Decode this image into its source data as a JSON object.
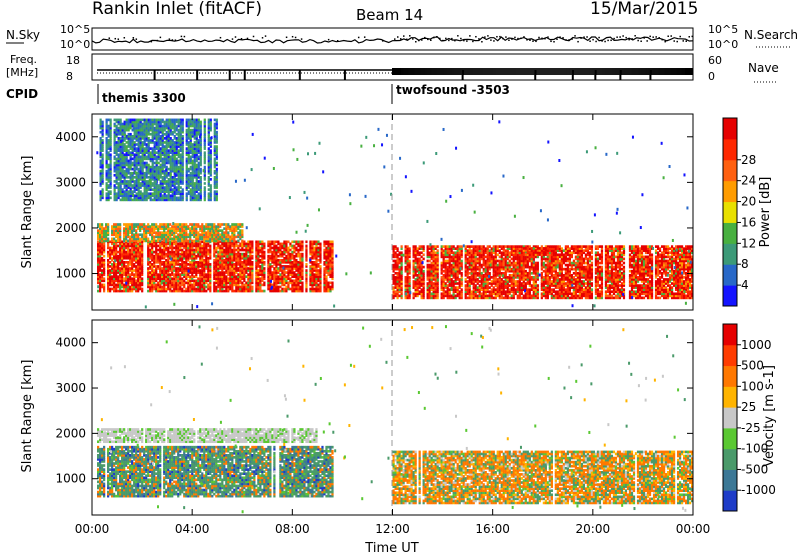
{
  "header": {
    "station": "Rankin Inlet (fitACF)",
    "beam": "Beam 14",
    "date": "15/Mar/2015"
  },
  "status": {
    "nsky_label": "N.Sky",
    "nsearch_label": "N.Search",
    "freq_label": "Freq.",
    "freq_unit": "[MHz]",
    "nave_label": "Nave",
    "cpid_label": "CPID",
    "power_ticks": [
      "10^5",
      "10^0"
    ],
    "freq_ticks": [
      "18",
      "8"
    ],
    "nave_ticks": [
      "60",
      "0"
    ],
    "cpid": [
      {
        "name": "themis 3300",
        "start_hour": 0.0
      },
      {
        "name": "twofsound -3503",
        "start_hour": 12.0
      }
    ]
  },
  "x_axis": {
    "label": "Time UT",
    "ticks": [
      "00:00",
      "04:00",
      "08:00",
      "12:00",
      "16:00",
      "20:00",
      "00:00"
    ]
  },
  "chart_data": [
    {
      "type": "heatmap",
      "name": "power",
      "ylabel": "Slant Range [km]",
      "yticks": [
        "1000",
        "2000",
        "3000",
        "4000"
      ],
      "ylim": [
        200,
        4500
      ],
      "xlim_hours": [
        0,
        24
      ],
      "colorbar": {
        "label": "Power [dB]",
        "ticks": [
          "4",
          "8",
          "12",
          "16",
          "20",
          "24",
          "28"
        ],
        "colors": [
          "#1414ff",
          "#2868c8",
          "#3c9a78",
          "#48b040",
          "#e8e000",
          "#ff9c00",
          "#ff6010",
          "#ff2800",
          "#e60000"
        ]
      },
      "regions": [
        {
          "t0": 0.2,
          "t1": 9.6,
          "r0": 600,
          "r1": 1700,
          "level": "high"
        },
        {
          "t0": 0.2,
          "t1": 6.0,
          "r0": 1700,
          "r1": 2100,
          "level": "mid"
        },
        {
          "t0": 0.3,
          "t1": 5.0,
          "r0": 2600,
          "r1": 4400,
          "level": "low"
        },
        {
          "t0": 12.0,
          "t1": 24.0,
          "r0": 450,
          "r1": 1600,
          "level": "high"
        },
        {
          "t0": 17.2,
          "t1": 18.2,
          "r0": 1400,
          "r1": 1550,
          "level": "high"
        }
      ]
    },
    {
      "type": "heatmap",
      "name": "velocity",
      "ylabel": "Slant Range [km]",
      "yticks": [
        "1000",
        "2000",
        "3000",
        "4000"
      ],
      "ylim": [
        200,
        4500
      ],
      "xlim_hours": [
        0,
        24
      ],
      "colorbar": {
        "label": "Velocity [m s-1]",
        "ticks": [
          "1000",
          "500",
          "100",
          "25",
          "-25",
          "-100",
          "-500",
          "-1000"
        ],
        "colors": [
          "#1e3cc8",
          "#3c7896",
          "#4a9a6a",
          "#5ac832",
          "#c8c8c8",
          "#ffb400",
          "#ff7800",
          "#ff3c00",
          "#e60000"
        ]
      },
      "regions": [
        {
          "t0": 0.2,
          "t1": 9.6,
          "r0": 600,
          "r1": 1700,
          "level": "mixed"
        },
        {
          "t0": 0.2,
          "t1": 9.0,
          "r0": 1800,
          "r1": 2100,
          "level": "gray"
        },
        {
          "t0": 12.0,
          "t1": 24.0,
          "r0": 450,
          "r1": 1600,
          "level": "mixed"
        }
      ]
    }
  ]
}
